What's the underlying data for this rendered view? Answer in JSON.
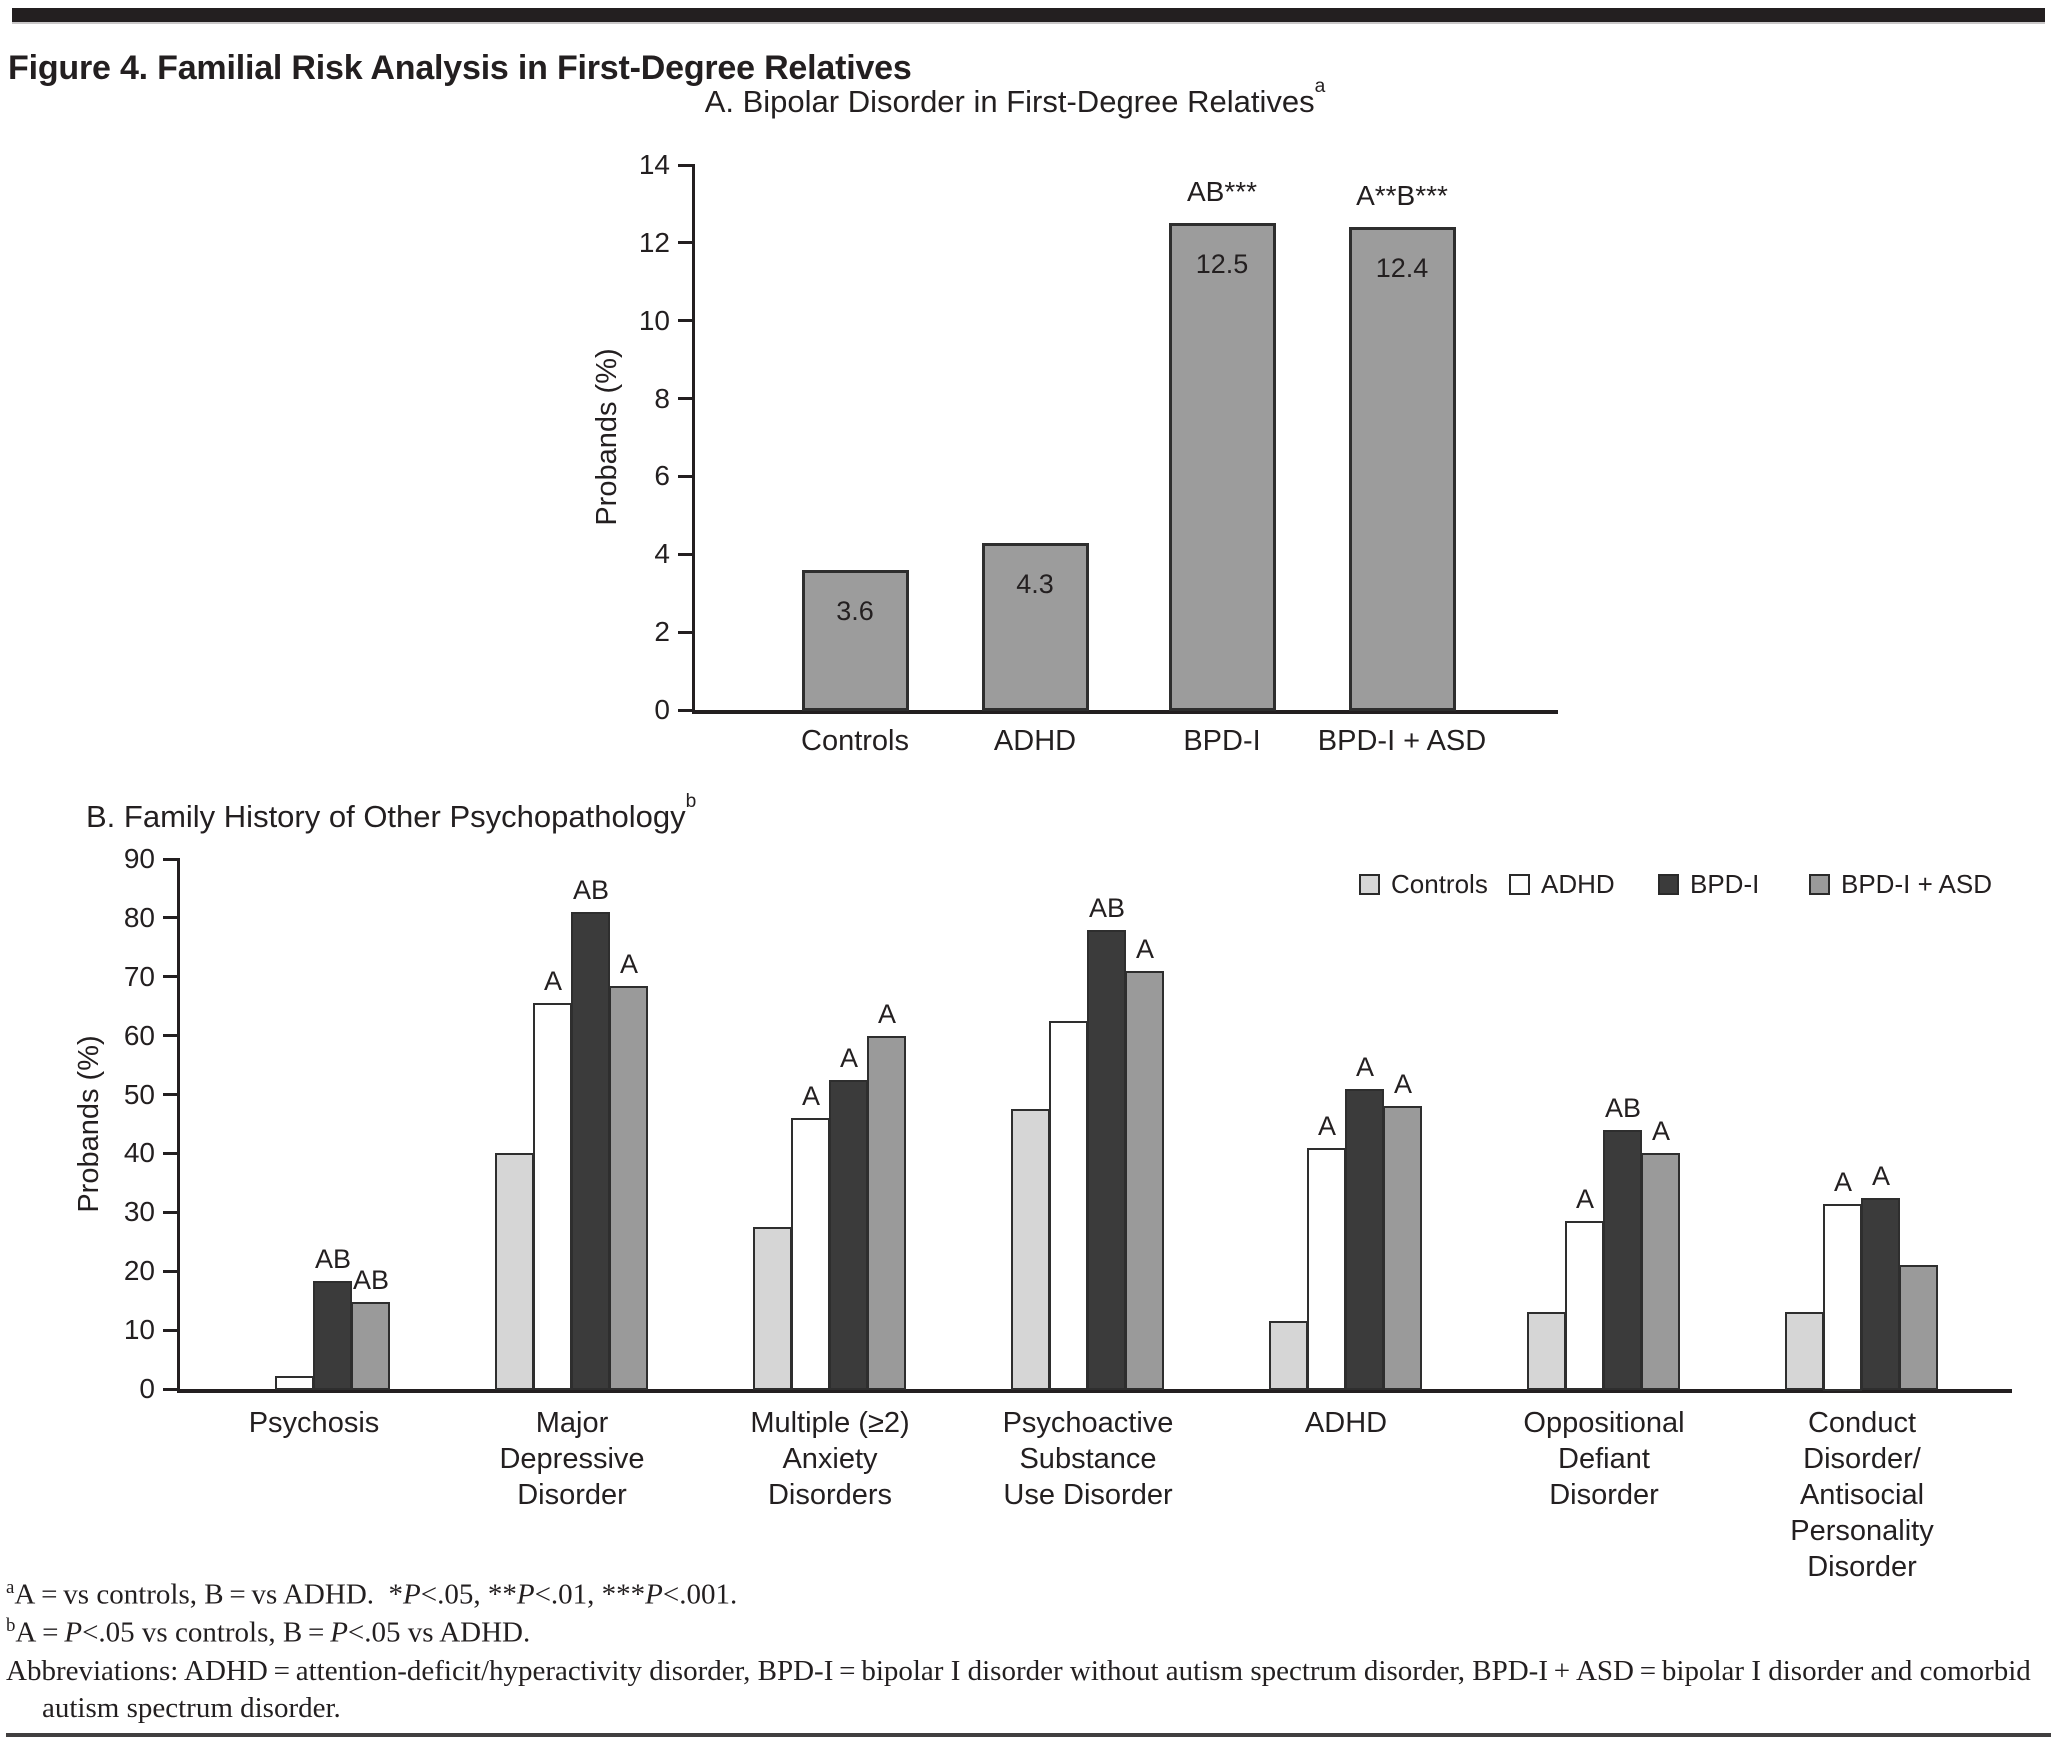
{
  "figure_title": "Figure 4. Familial Risk Analysis in First-Degree Relatives",
  "colors": {
    "axis": "#231f20",
    "chart_a_bar": "#9c9c9c",
    "bar_border": "#2e2e2e",
    "series": [
      "#d6d6d6",
      "#ffffff",
      "#3b3b3b",
      "#9a9a9a"
    ]
  },
  "chart_data": [
    {
      "id": "A",
      "type": "bar",
      "title": "A. Bipolar Disorder in First-Degree Relatives",
      "title_sup": "a",
      "ylabel": "Probands (%)",
      "ylim": [
        0,
        14
      ],
      "ytick_step": 2,
      "grid": false,
      "categories": [
        "Controls",
        "ADHD",
        "BPD-I",
        "BPD-I + ASD"
      ],
      "values": [
        3.6,
        4.3,
        12.5,
        12.4
      ],
      "bar_labels": [
        "3.6",
        "4.3",
        "12.5",
        "12.4"
      ],
      "annotations": [
        "",
        "",
        "AB***",
        "A**B***"
      ]
    },
    {
      "id": "B",
      "type": "grouped-bar",
      "title": "B. Family History of Other Psychopathology",
      "title_sup": "b",
      "ylabel": "Probands (%)",
      "ylim": [
        0,
        90
      ],
      "ytick_step": 10,
      "grid": false,
      "legend_position": "top-right",
      "legend": [
        "Controls",
        "ADHD",
        "BPD-I",
        "BPD-I + ASD"
      ],
      "categories": [
        [
          "Psychosis"
        ],
        [
          "Major",
          "Depressive",
          "Disorder"
        ],
        [
          "Multiple (≥2)",
          "Anxiety",
          "Disorders"
        ],
        [
          "Psychoactive",
          "Substance",
          "Use Disorder"
        ],
        [
          "ADHD"
        ],
        [
          "Oppositional",
          "Defiant",
          "Disorder"
        ],
        [
          "Conduct",
          "Disorder/",
          "Antisocial",
          "Personality",
          "Disorder"
        ]
      ],
      "series": [
        {
          "name": "Controls",
          "values": [
            0,
            40,
            27.5,
            47.5,
            11.5,
            13,
            13
          ],
          "sig": [
            "",
            "",
            "",
            "",
            "",
            "",
            ""
          ]
        },
        {
          "name": "ADHD",
          "values": [
            2.2,
            65.5,
            46,
            62.5,
            41,
            28.5,
            31.5
          ],
          "sig": [
            "",
            "A",
            "A",
            "",
            "A",
            "A",
            "A"
          ]
        },
        {
          "name": "BPD-I",
          "values": [
            18.4,
            81,
            52.5,
            78,
            51,
            44,
            32.5
          ],
          "sig": [
            "AB",
            "AB",
            "A",
            "AB",
            "A",
            "AB",
            "A"
          ]
        },
        {
          "name": "BPD-I + ASD",
          "values": [
            14.8,
            68.5,
            60,
            71,
            48,
            40,
            21
          ],
          "sig": [
            "AB",
            "A",
            "A",
            "A",
            "A",
            "A",
            ""
          ]
        }
      ]
    }
  ],
  "footnotes": {
    "a": "<sup>a</sup>A = vs controls, B = vs ADHD.&nbsp; *<i>P</i>&lt;.05, **<i>P</i>&lt;.01, ***<i>P</i>&lt;.001.",
    "b": "<sup>b</sup>A = <i>P</i>&lt;.05 vs controls, B = <i>P</i>&lt;.05 vs ADHD.",
    "abbreviations": "Abbreviations: ADHD = attention-deficit/hyperactivity disorder, BPD-I = bipolar I disorder without autism spectrum disorder, BPD-I + ASD = bipolar I disorder and comorbid autism spectrum disorder."
  }
}
